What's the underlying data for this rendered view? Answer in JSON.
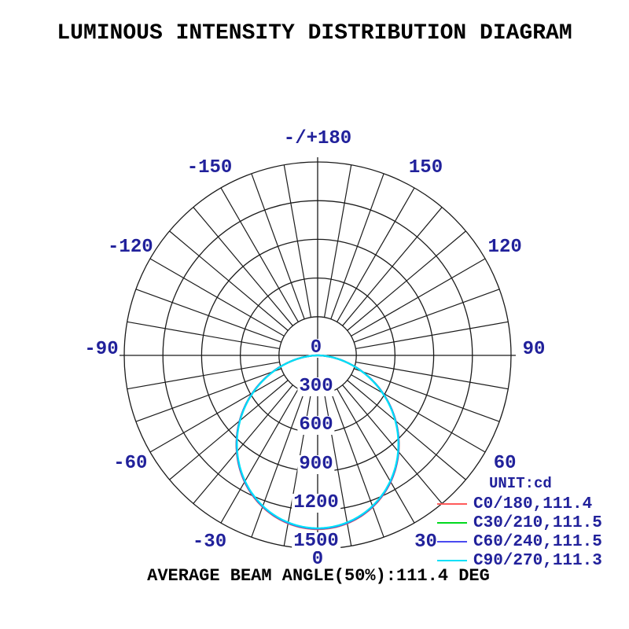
{
  "title": "LUMINOUS INTENSITY DISTRIBUTION DIAGRAM",
  "footer": {
    "average_beam_angle_label": "AVERAGE BEAM ANGLE(50%):111.4 DEG"
  },
  "legend": {
    "unit_label": "UNIT:cd",
    "entries": [
      {
        "label": "C0/180,111.4",
        "color": "#ff5a5a"
      },
      {
        "label": "C30/210,111.5",
        "color": "#00d91e"
      },
      {
        "label": "C60/240,111.5",
        "color": "#4a4af0"
      },
      {
        "label": "C90/270,111.3",
        "color": "#00e0f8"
      }
    ]
  },
  "chart_data": {
    "type": "line",
    "subtype": "polar-luminous-intensity",
    "title": "LUMINOUS INTENSITY DISTRIBUTION DIAGRAM",
    "unit": "cd",
    "radial_ticks": [
      0,
      300,
      600,
      900,
      1200,
      1500
    ],
    "radial_max": 1500,
    "angle_grid_step_deg": 10,
    "angle_labels": [
      {
        "angle_deg": 180,
        "label": "-/+180"
      },
      {
        "angle_deg": -150,
        "label": "-150"
      },
      {
        "angle_deg": 150,
        "label": "150"
      },
      {
        "angle_deg": -120,
        "label": "-120"
      },
      {
        "angle_deg": 120,
        "label": "120"
      },
      {
        "angle_deg": -90,
        "label": "-90"
      },
      {
        "angle_deg": 90,
        "label": "90"
      },
      {
        "angle_deg": -60,
        "label": "-60"
      },
      {
        "angle_deg": 60,
        "label": "60"
      },
      {
        "angle_deg": -30,
        "label": "-30"
      },
      {
        "angle_deg": 30,
        "label": "30"
      },
      {
        "angle_deg": 0,
        "label": "0"
      }
    ],
    "series": [
      {
        "name": "C0/180",
        "beam_angle_50_deg": 111.4,
        "peak_cd": 1348,
        "color": "#ff5a5a"
      },
      {
        "name": "C30/210",
        "beam_angle_50_deg": 111.5,
        "peak_cd": 1344,
        "color": "#00d91e"
      },
      {
        "name": "C60/240",
        "beam_angle_50_deg": 111.5,
        "peak_cd": 1344,
        "color": "#4a4af0"
      },
      {
        "name": "C90/270",
        "beam_angle_50_deg": 111.3,
        "peak_cd": 1340,
        "color": "#00e0f8"
      }
    ],
    "average_beam_angle_50_deg": 111.4,
    "model": "I(gamma) = peak_cd * cos(gamma)^k, k solved from 50% beam angle; gamma=0 at nadir (bottom)"
  }
}
